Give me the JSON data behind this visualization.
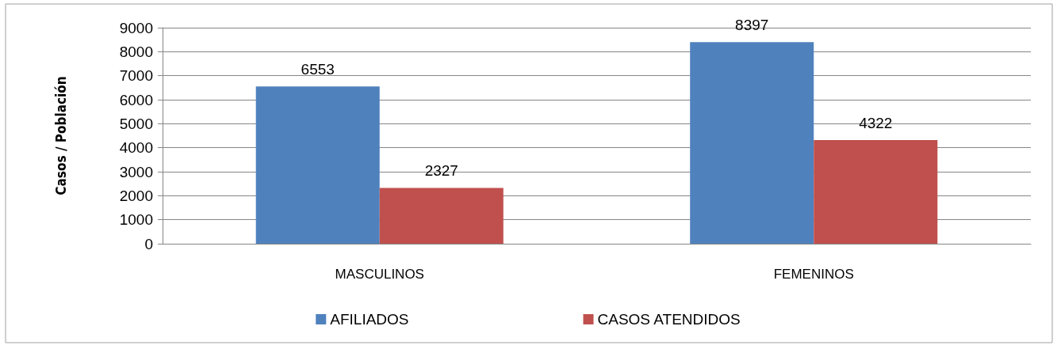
{
  "chart_data": {
    "type": "bar",
    "ylabel": "Casos / Población",
    "categories": [
      "MASCULINOS",
      "FEMENINOS"
    ],
    "series": [
      {
        "name": "AFILIADOS",
        "color": "#4f81bd",
        "values": [
          6553,
          8397
        ]
      },
      {
        "name": "CASOS ATENDIDOS",
        "color": "#c0504d",
        "values": [
          2327,
          4322
        ]
      }
    ],
    "ylim": [
      0,
      9000
    ],
    "yticks": [
      0,
      1000,
      2000,
      3000,
      4000,
      5000,
      6000,
      7000,
      8000,
      9000
    ],
    "grid": "y",
    "legend": "bottom",
    "data_labels": true
  }
}
